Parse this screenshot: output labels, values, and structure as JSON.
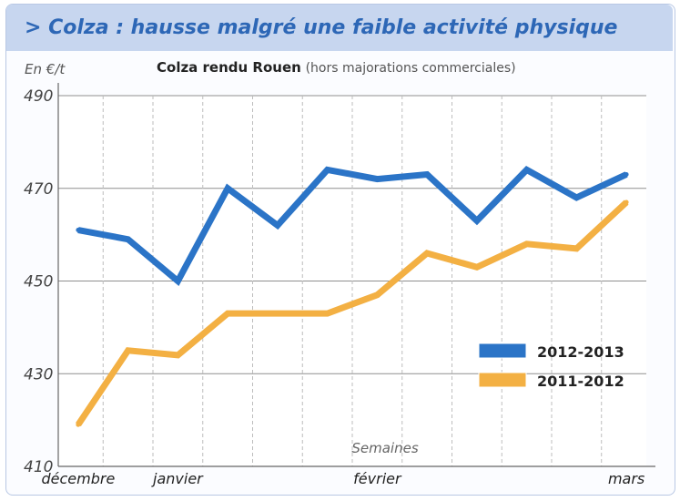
{
  "header": {
    "title": "> Colza : hausse malgré une faible activité physique"
  },
  "colors": {
    "series_2012_2013": "#2b74c7",
    "series_2011_2012": "#f3b043",
    "banner": "#c7d6ef",
    "title": "#2d67b6"
  },
  "chart_data": {
    "type": "line",
    "title": "Colza rendu Rouen",
    "subtitle": "(hors majorations commerciales)",
    "ylabel": "En €/t",
    "xlabel": "Semaines",
    "ylim": [
      410,
      490
    ],
    "yticks": [
      410,
      430,
      450,
      470,
      490
    ],
    "month_labels": [
      "décembre",
      "janvier",
      "février",
      "mars"
    ],
    "month_label_weeks": [
      1,
      3,
      7,
      12
    ],
    "weeks": [
      1,
      2,
      3,
      4,
      5,
      6,
      7,
      8,
      9,
      10,
      11,
      12
    ],
    "grid": "vertical dashed",
    "legend_position": "bottom-right",
    "series": [
      {
        "name": "2012-2013",
        "values": [
          461,
          459,
          450,
          470,
          462,
          474,
          472,
          473,
          463,
          474,
          468,
          473
        ]
      },
      {
        "name": "2011-2012",
        "values": [
          419,
          435,
          434,
          443,
          443,
          443,
          447,
          456,
          453,
          458,
          457,
          467
        ]
      }
    ]
  }
}
